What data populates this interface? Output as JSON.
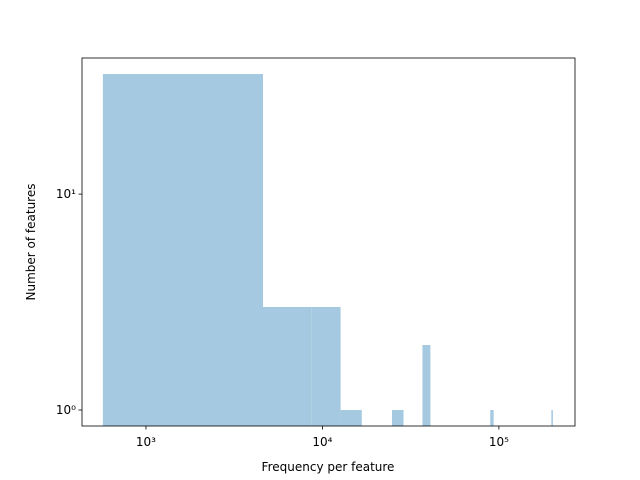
{
  "chart_data": {
    "type": "histogram",
    "xlabel": "Frequency per feature",
    "ylabel": "Number of features",
    "bins": [
      570,
      4605,
      8640,
      12675,
      16710,
      20745,
      24780,
      28815,
      32850,
      36885,
      40920,
      44955,
      48990,
      53025,
      57060,
      61095,
      65130,
      69165,
      73200,
      77235,
      81270,
      85305,
      89340,
      93375,
      97410,
      101445,
      105480,
      109515,
      113550,
      117585,
      121620,
      125655,
      129690,
      133725,
      137760,
      141795,
      145830,
      149865,
      153900,
      157935,
      161970,
      166005,
      170040,
      174075,
      178110,
      182145,
      186180,
      190215,
      194250,
      198285,
      202320
    ],
    "values": [
      36,
      3,
      3,
      1,
      0,
      0,
      1,
      0,
      0,
      2,
      0,
      0,
      0,
      0,
      0,
      0,
      0,
      0,
      0,
      0,
      0,
      0,
      1,
      0,
      0,
      0,
      0,
      0,
      0,
      0,
      0,
      0,
      0,
      0,
      0,
      0,
      0,
      0,
      0,
      0,
      0,
      0,
      0,
      0,
      0,
      0,
      0,
      0,
      0,
      1
    ],
    "color": "#a5c9e1",
    "xscale": "log",
    "yscale": "log",
    "xlim": [
      434,
      270000
    ],
    "ylim": [
      0.843,
      42.7
    ],
    "xticks": [
      {
        "value": 1000,
        "label": "10³"
      },
      {
        "value": 10000,
        "label": "10⁴"
      },
      {
        "value": 100000,
        "label": "10⁵"
      }
    ],
    "yticks": [
      {
        "value": 1,
        "label": "10⁰"
      },
      {
        "value": 10,
        "label": "10¹"
      }
    ]
  }
}
